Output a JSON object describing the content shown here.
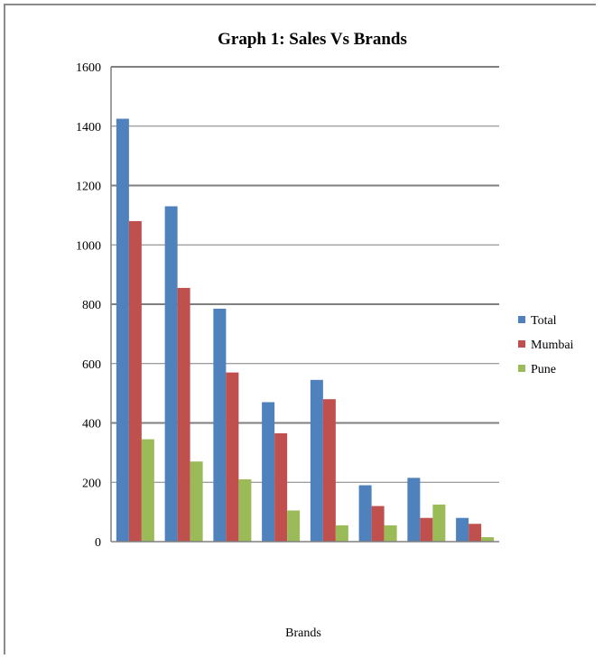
{
  "chart_data": {
    "type": "bar",
    "title": "Graph 1: Sales Vs Brands",
    "xlabel": "Brands",
    "ylabel": "",
    "ylim": [
      0,
      1600
    ],
    "yticks": [
      0,
      200,
      400,
      600,
      800,
      1000,
      1200,
      1400,
      1600
    ],
    "categories": [
      "",
      "",
      "",
      "",
      "",
      "",
      "",
      ""
    ],
    "series": [
      {
        "name": "Total",
        "color": "#4f81bd",
        "values": [
          1425,
          1130,
          785,
          470,
          545,
          190,
          215,
          80
        ]
      },
      {
        "name": "Mumbai",
        "color": "#c0504d",
        "values": [
          1080,
          855,
          570,
          365,
          480,
          120,
          80,
          60
        ]
      },
      {
        "name": "Pune",
        "color": "#9bbb59",
        "values": [
          345,
          270,
          210,
          105,
          55,
          55,
          125,
          15
        ]
      }
    ],
    "grid": true,
    "legend": "right"
  }
}
